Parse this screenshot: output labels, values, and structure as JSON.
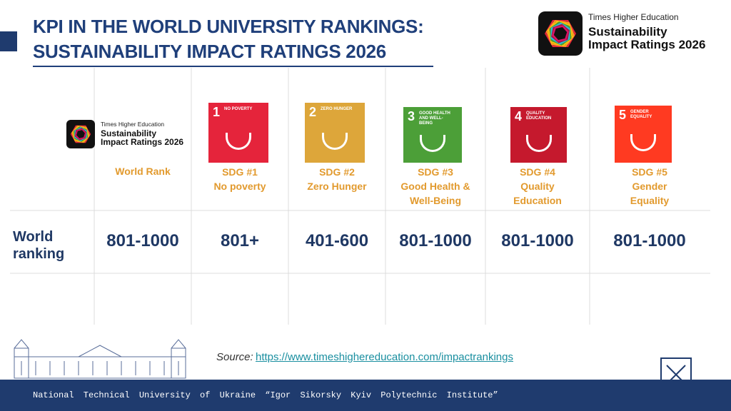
{
  "header": {
    "title_line1": "KPI IN THE WORLD UNIVERSITY RANKINGS:",
    "title_line2": "SUSTAINABILITY IMPACT RATINGS 2026"
  },
  "logo": {
    "publisher": "Times Higher Education",
    "line1": "Sustainability",
    "line2": "Impact Ratings 2026"
  },
  "table": {
    "header": [
      [
        "World Rank"
      ],
      [
        "SDG #1",
        "No poverty"
      ],
      [
        "SDG #2",
        "Zero Hunger"
      ],
      [
        "SDG #3",
        "Good Health &",
        "Well-Being"
      ],
      [
        "SDG #4",
        "Quality",
        "Education"
      ],
      [
        "SDG #5",
        "Gender",
        "Equality"
      ]
    ],
    "sdg_icons": [
      {
        "number": "1",
        "label": "NO POVERTY"
      },
      {
        "number": "2",
        "label": "ZERO HUNGER"
      },
      {
        "number": "3",
        "label": "GOOD HEALTH AND WELL-BEING"
      },
      {
        "number": "4",
        "label": "QUALITY EDUCATION"
      },
      {
        "number": "5",
        "label": "GENDER EQUALITY"
      }
    ],
    "rows": [
      {
        "label": "World ranking",
        "cells": [
          "801-1000",
          "801+",
          "401-600",
          "801-1000",
          "801-1000",
          "801-1000"
        ]
      }
    ]
  },
  "source": {
    "label": "Source:",
    "url": "https://www.timeshighereducation.com/impactrankings"
  },
  "footer": "National Technical University of Ukraine “Igor Sikorsky Kyiv Polytechnic Institute”"
}
